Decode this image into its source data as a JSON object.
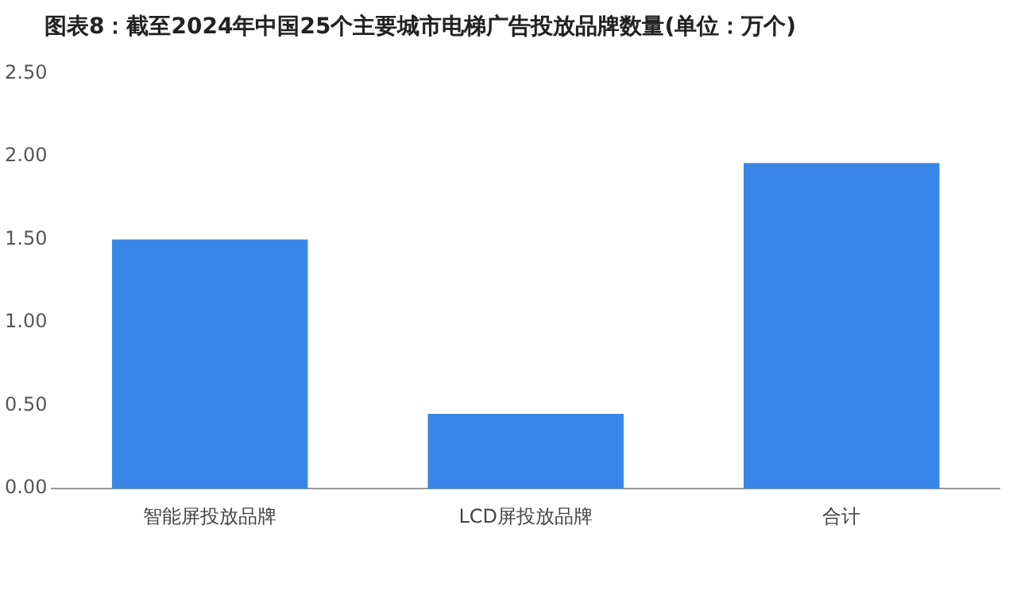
{
  "chart_data": {
    "type": "bar",
    "title": "图表8：截至2024年中国25个主要城市电梯广告投放品牌数量(单位：万个)",
    "categories": [
      "智能屏投放品牌",
      "LCD屏投放品牌",
      "合计"
    ],
    "values": [
      1.5,
      0.45,
      1.96
    ],
    "color": "#3a86e8",
    "ylim": [
      0,
      2.5
    ],
    "yticks": [
      {
        "value": 0,
        "label": "0.00"
      },
      {
        "value": 0.5,
        "label": "0.50"
      },
      {
        "value": 1,
        "label": "1.00"
      },
      {
        "value": 1.5,
        "label": "1.50"
      },
      {
        "value": 2,
        "label": "2.00"
      },
      {
        "value": 2.5,
        "label": "2.50"
      }
    ],
    "grid": false,
    "legend": false
  }
}
